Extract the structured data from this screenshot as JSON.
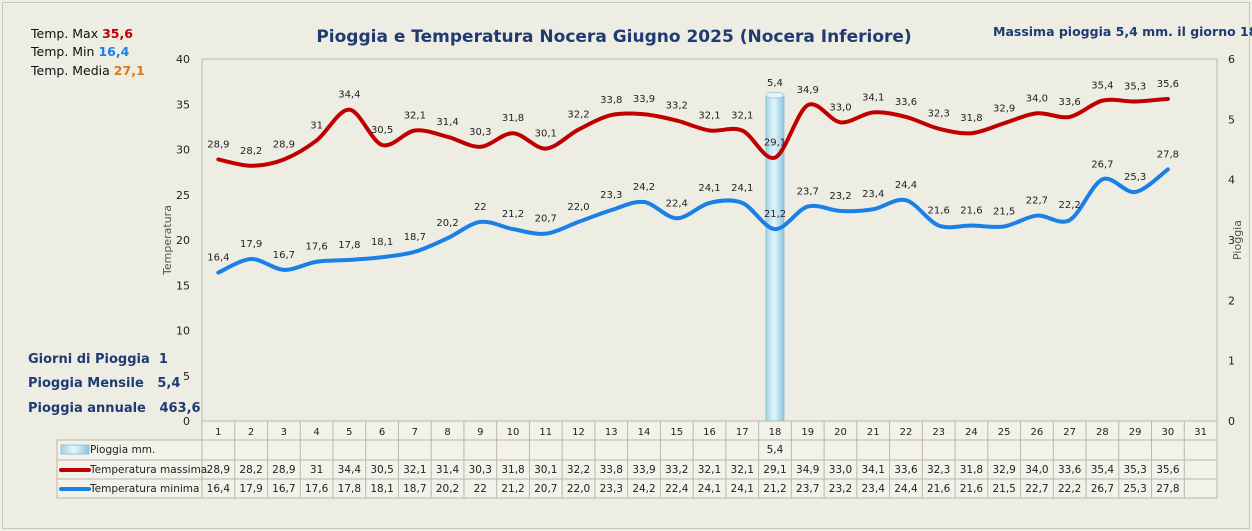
{
  "title": "Pioggia e Temperatura Nocera Giugno 2025 (Nocera Inferiore)",
  "stats": {
    "tmax_label": "Temp. Max",
    "tmax_value": "35,6",
    "tmin_label": "Temp.  Min",
    "tmin_value": "16,4",
    "tmed_label": "Temp. Media",
    "tmed_value": "27,1",
    "rain_max_text": "Massima pioggia    5,4  mm. il giorno 18",
    "rain_days_label": "Giorni di Pioggia",
    "rain_days_value": "1",
    "rain_month_label": "Pioggia Mensile",
    "rain_month_value": "5,4",
    "rain_year_label": "Pioggia annuale",
    "rain_year_value": "463,6"
  },
  "colors": {
    "max": "#c00000",
    "min": "#1a7fe6",
    "med": "#e07a10",
    "title": "#1f3b73",
    "rain": "#bfe6f3"
  },
  "chart_data": {
    "type": "line",
    "title": "Pioggia e Temperatura Nocera Giugno 2025 (Nocera Inferiore)",
    "ylabel": "Temperatura",
    "y2label": "Pioggia",
    "ylim": [
      0,
      40
    ],
    "y2lim": [
      0,
      6
    ],
    "categories": [
      "1",
      "2",
      "3",
      "4",
      "5",
      "6",
      "7",
      "8",
      "9",
      "10",
      "11",
      "12",
      "13",
      "14",
      "15",
      "16",
      "17",
      "18",
      "19",
      "20",
      "21",
      "22",
      "23",
      "24",
      "25",
      "26",
      "27",
      "28",
      "29",
      "30",
      "31"
    ],
    "series": [
      {
        "name": "Pioggia mm.",
        "axis": "secondary",
        "type": "bar",
        "values": [
          null,
          null,
          null,
          null,
          null,
          null,
          null,
          null,
          null,
          null,
          null,
          null,
          null,
          null,
          null,
          null,
          null,
          5.4,
          null,
          null,
          null,
          null,
          null,
          null,
          null,
          null,
          null,
          null,
          null,
          null,
          null
        ],
        "labels": [
          "",
          "",
          "",
          "",
          "",
          "",
          "",
          "",
          "",
          "",
          "",
          "",
          "",
          "",
          "",
          "",
          "",
          "5,4",
          "",
          "",
          "",
          "",
          "",
          "",
          "",
          "",
          "",
          "",
          "",
          "",
          ""
        ]
      },
      {
        "name": "Temperatura massima",
        "axis": "primary",
        "values": [
          28.9,
          28.2,
          28.9,
          31,
          34.4,
          30.5,
          32.1,
          31.4,
          30.3,
          31.8,
          30.1,
          32.2,
          33.8,
          33.9,
          33.2,
          32.1,
          32.1,
          29.1,
          34.9,
          33.0,
          34.1,
          33.6,
          32.3,
          31.8,
          32.9,
          34.0,
          33.6,
          35.4,
          35.3,
          35.6,
          null
        ],
        "labels": [
          "28,9",
          "28,2",
          "28,9",
          "31",
          "34,4",
          "30,5",
          "32,1",
          "31,4",
          "30,3",
          "31,8",
          "30,1",
          "32,2",
          "33,8",
          "33,9",
          "33,2",
          "32,1",
          "32,1",
          "29,1",
          "34,9",
          "33,0",
          "34,1",
          "33,6",
          "32,3",
          "31,8",
          "32,9",
          "34,0",
          "33,6",
          "35,4",
          "35,3",
          "35,6",
          ""
        ]
      },
      {
        "name": "Temperatura minima",
        "axis": "primary",
        "values": [
          16.4,
          17.9,
          16.7,
          17.6,
          17.8,
          18.1,
          18.7,
          20.2,
          22,
          21.2,
          20.7,
          22.0,
          23.3,
          24.2,
          22.4,
          24.1,
          24.1,
          21.2,
          23.7,
          23.2,
          23.4,
          24.4,
          21.6,
          21.6,
          21.5,
          22.7,
          22.2,
          26.7,
          25.3,
          27.8,
          null
        ],
        "labels": [
          "16,4",
          "17,9",
          "16,7",
          "17,6",
          "17,8",
          "18,1",
          "18,7",
          "20,2",
          "22",
          "21,2",
          "20,7",
          "22,0",
          "23,3",
          "24,2",
          "22,4",
          "24,1",
          "24,1",
          "21,2",
          "23,7",
          "23,2",
          "23,4",
          "24,4",
          "21,6",
          "21,6",
          "21,5",
          "22,7",
          "22,2",
          "26,7",
          "25,3",
          "27,8",
          ""
        ]
      }
    ],
    "y_ticks": [
      "0",
      "5",
      "10",
      "15",
      "20",
      "25",
      "30",
      "35",
      "40"
    ],
    "y2_ticks": [
      "0",
      "1",
      "2",
      "3",
      "4",
      "5",
      "6"
    ],
    "table_row_labels": [
      "Pioggia mm.",
      "Temperatura massima",
      "Temperatura minima"
    ],
    "grid": false,
    "legend": "data-table"
  }
}
